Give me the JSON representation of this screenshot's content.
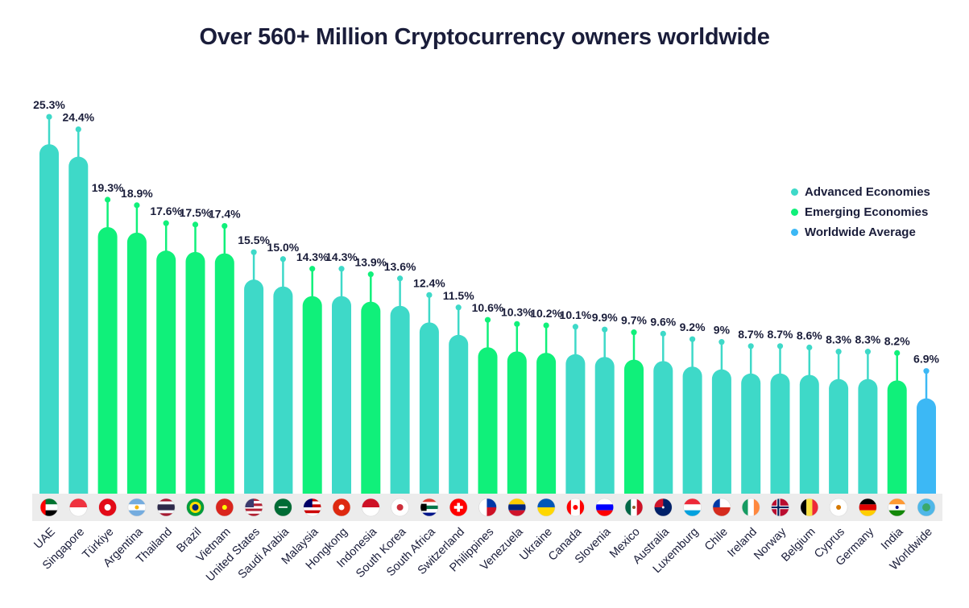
{
  "title": "Over 560+ Million Cryptocurrency owners worldwide",
  "colors": {
    "advanced": "#3ed9c8",
    "emerging": "#10f07a",
    "average": "#3cb8f5",
    "text": "#1a1d3a",
    "baseline_strip": "#ececec"
  },
  "legend": [
    {
      "label": "Advanced Economies",
      "category": "advanced"
    },
    {
      "label": "Emerging Economies",
      "category": "emerging"
    },
    {
      "label": "Worldwide Average",
      "category": "average"
    }
  ],
  "chart_data": {
    "type": "bar",
    "title": "Over 560+ Million Cryptocurrency owners worldwide",
    "ylim": [
      0,
      30
    ],
    "grid": false,
    "legend_position": "right",
    "categories": [
      "UAE",
      "Singapore",
      "Türkiye",
      "Argentina",
      "Thailand",
      "Brazil",
      "Vietnam",
      "United States",
      "Saudi Arabia",
      "Malaysia",
      "Hongkong",
      "Indonesia",
      "South Korea",
      "South Africa",
      "Switzerland",
      "Philippines",
      "Venezuela",
      "Ukraine",
      "Canada",
      "Slovenia",
      "Mexico",
      "Australia",
      "Luxemburg",
      "Chile",
      "Ireland",
      "Norway",
      "Belgium",
      "Cyprus",
      "Germany",
      "India",
      "Worldwide"
    ],
    "values": [
      25.3,
      24.4,
      19.3,
      18.9,
      17.6,
      17.5,
      17.4,
      15.5,
      15.0,
      14.3,
      14.3,
      13.9,
      13.6,
      12.4,
      11.5,
      10.6,
      10.3,
      10.2,
      10.1,
      9.9,
      9.7,
      9.6,
      9.2,
      9,
      8.7,
      8.7,
      8.6,
      8.3,
      8.3,
      8.2,
      6.9
    ],
    "labels": [
      "25.3%",
      "24.4%",
      "19.3%",
      "18.9%",
      "17.6%",
      "17.5%",
      "17.4%",
      "15.5%",
      "15.0%",
      "14.3%",
      "14.3%",
      "13.9%",
      "13.6%",
      "12.4%",
      "11.5%",
      "10.6%",
      "10.3%",
      "10.2%",
      "10.1%",
      "9.9%",
      "9.7%",
      "9.6%",
      "9.2%",
      "9%",
      "8.7%",
      "8.7%",
      "8.6%",
      "8.3%",
      "8.3%",
      "8.2%",
      "6.9%"
    ],
    "groups": [
      "advanced",
      "advanced",
      "emerging",
      "emerging",
      "emerging",
      "emerging",
      "emerging",
      "advanced",
      "advanced",
      "emerging",
      "advanced",
      "emerging",
      "advanced",
      "advanced",
      "advanced",
      "emerging",
      "emerging",
      "emerging",
      "advanced",
      "advanced",
      "emerging",
      "advanced",
      "advanced",
      "advanced",
      "advanced",
      "advanced",
      "advanced",
      "advanced",
      "advanced",
      "emerging",
      "average"
    ],
    "flag_icons": [
      "uae-flag-icon",
      "singapore-flag-icon",
      "turkiye-flag-icon",
      "argentina-flag-icon",
      "thailand-flag-icon",
      "brazil-flag-icon",
      "vietnam-flag-icon",
      "united-states-flag-icon",
      "saudi-arabia-flag-icon",
      "malaysia-flag-icon",
      "hongkong-flag-icon",
      "indonesia-flag-icon",
      "south-korea-flag-icon",
      "south-africa-flag-icon",
      "switzerland-flag-icon",
      "philippines-flag-icon",
      "venezuela-flag-icon",
      "ukraine-flag-icon",
      "canada-flag-icon",
      "slovenia-flag-icon",
      "mexico-flag-icon",
      "australia-flag-icon",
      "luxemburg-flag-icon",
      "chile-flag-icon",
      "ireland-flag-icon",
      "norway-flag-icon",
      "belgium-flag-icon",
      "cyprus-flag-icon",
      "germany-flag-icon",
      "india-flag-icon",
      "globe-icon"
    ]
  }
}
